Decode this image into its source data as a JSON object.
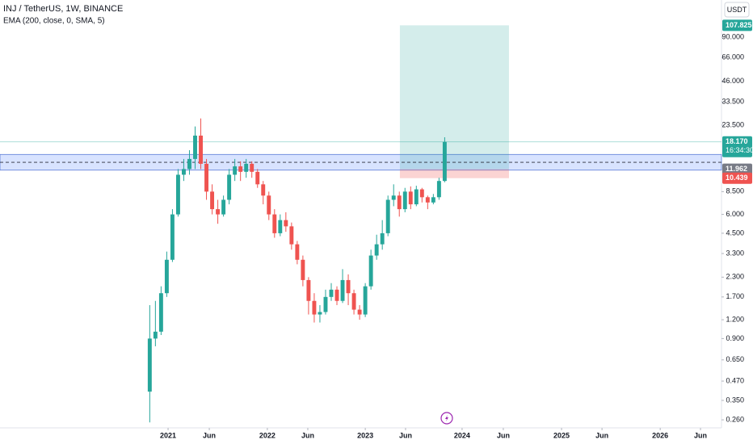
{
  "chart_data": {
    "type": "candlestick",
    "title": "INJ / TetherUS, 1W, BINANCE",
    "subtitle": "EMA (200, close, 0, SMA, 5)",
    "currency": "USDT",
    "log_scale": true,
    "up_color": "#26a69a",
    "down_color": "#ef5350",
    "x": [
      1,
      4,
      7,
      10,
      13,
      16,
      19,
      22,
      25,
      28,
      31,
      34,
      37,
      40,
      43,
      46,
      49,
      52,
      55,
      58,
      61,
      64,
      67,
      70,
      73,
      76,
      79,
      82,
      85,
      88,
      91,
      94,
      97,
      100,
      103,
      106,
      109,
      112,
      115,
      118,
      121,
      124,
      127,
      130,
      133,
      136,
      139,
      142,
      145,
      148,
      151,
      154,
      157
    ],
    "open": [
      0.4,
      0.9,
      1.0,
      1.8,
      3,
      6,
      11,
      12,
      14,
      20,
      13,
      8.5,
      6.5,
      6,
      7.5,
      11,
      12.5,
      11.5,
      13,
      11.5,
      9.5,
      8,
      6,
      4.5,
      5.5,
      5,
      3.8,
      3,
      2.2,
      1.6,
      1.3,
      1.35,
      1.7,
      1.9,
      1.6,
      2.2,
      1.8,
      1.4,
      1.3,
      2.0,
      3.2,
      3.8,
      4.5,
      7.5,
      8,
      6.5,
      8.5,
      7,
      8.8,
      7.8,
      7.2,
      7.8,
      10
    ],
    "high": [
      1.5,
      1.6,
      2.0,
      3.4,
      6.5,
      12,
      14,
      16,
      23,
      26,
      14,
      9.5,
      7.5,
      8,
      12,
      14,
      13.5,
      14,
      13.5,
      12,
      10,
      8.5,
      6.5,
      6,
      6.2,
      5.3,
      4,
      3.2,
      2.3,
      1.8,
      1.5,
      1.9,
      2.1,
      2.0,
      2.6,
      2.4,
      1.9,
      1.5,
      2.1,
      3.5,
      4.4,
      5.5,
      8,
      9.5,
      8.5,
      9,
      9.2,
      9.3,
      9,
      8,
      8.2,
      10.5,
      19.5
    ],
    "low": [
      0.25,
      0.8,
      0.95,
      1.7,
      2.9,
      5.8,
      10,
      11,
      12,
      12,
      7.5,
      6,
      5.2,
      5.8,
      7,
      10,
      10,
      10.5,
      10.5,
      9,
      7,
      5.5,
      4.2,
      4.3,
      4.6,
      3.5,
      2.8,
      2,
      1.3,
      1.15,
      1.15,
      1.3,
      1.6,
      1.5,
      1.55,
      1.5,
      1.3,
      1.2,
      1.25,
      1.9,
      3.0,
      3.5,
      4.3,
      6.8,
      5.8,
      6.2,
      6.5,
      6.8,
      7.2,
      6.5,
      7,
      7.5,
      9.8
    ],
    "close": [
      0.9,
      1.0,
      1.8,
      3.0,
      6,
      11,
      12,
      14,
      20,
      13,
      8.5,
      6.5,
      6,
      7.5,
      11,
      12.5,
      11.5,
      13,
      11.5,
      9.5,
      8,
      6,
      4.5,
      5.5,
      5,
      3.8,
      3.0,
      2.2,
      1.6,
      1.3,
      1.35,
      1.7,
      1.9,
      1.6,
      2.2,
      1.8,
      1.4,
      1.3,
      2.0,
      3.2,
      3.8,
      4.5,
      7.5,
      8,
      6.5,
      8.5,
      7,
      8.8,
      7.8,
      7.2,
      7.8,
      10,
      18.17
    ],
    "xlim": [
      -78.2,
      303.4
    ],
    "xticks": [
      {
        "value": 10.7,
        "label": "2021"
      },
      {
        "value": 32.5,
        "label": "Jun"
      },
      {
        "value": 63.2,
        "label": "2022"
      },
      {
        "value": 84.6,
        "label": "Jun"
      },
      {
        "value": 115,
        "label": "2023"
      },
      {
        "value": 136.3,
        "label": "Jun"
      },
      {
        "value": 166.2,
        "label": "2024"
      },
      {
        "value": 188,
        "label": "Jun"
      },
      {
        "value": 218.8,
        "label": "2025"
      },
      {
        "value": 240.2,
        "label": "Jun"
      },
      {
        "value": 271,
        "label": "2026"
      },
      {
        "value": 292.3,
        "label": "Jun"
      }
    ],
    "ylim": [
      0.23,
      158.8
    ],
    "yticks": [
      {
        "value": 90,
        "label": "90.000"
      },
      {
        "value": 66,
        "label": "66.000"
      },
      {
        "value": 46,
        "label": "46.000"
      },
      {
        "value": 33.5,
        "label": "33.500"
      },
      {
        "value": 23.5,
        "label": "23.500"
      },
      {
        "value": 8.5,
        "label": "8.500"
      },
      {
        "value": 6,
        "label": "6.000"
      },
      {
        "value": 4.5,
        "label": "4.500"
      },
      {
        "value": 3.3,
        "label": "3.300"
      },
      {
        "value": 2.3,
        "label": "2.300"
      },
      {
        "value": 1.7,
        "label": "1.700"
      },
      {
        "value": 1.2,
        "label": "1.200"
      },
      {
        "value": 0.9,
        "label": "0.900"
      },
      {
        "value": 0.65,
        "label": "0.650"
      },
      {
        "value": 0.47,
        "label": "0.470"
      },
      {
        "value": 0.35,
        "label": "0.350"
      },
      {
        "value": 0.26,
        "label": "0.260"
      }
    ],
    "last_price": {
      "value": 18.17,
      "label": "18.170"
    },
    "countdown": "16:34:30",
    "position": {
      "target": {
        "value": 107.825,
        "label": "107.825"
      },
      "entry": {
        "value": 11.962,
        "label": "11.962"
      },
      "stop": {
        "value": 10.439,
        "label": "10.439"
      },
      "x_start": 133.3,
      "x_end": 191
    },
    "zone": [
      11.8,
      15.0
    ],
    "level": 13.3
  }
}
